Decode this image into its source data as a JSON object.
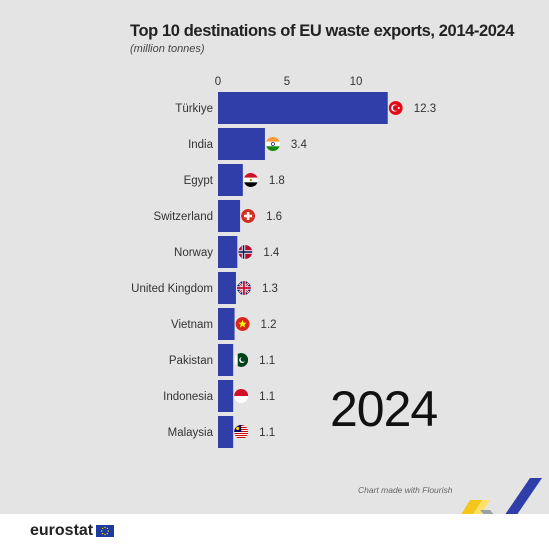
{
  "chart_data": {
    "type": "bar",
    "orientation": "horizontal",
    "title": "Top 10 destinations of EU waste exports, 2014-2024",
    "subtitle": "(million tonnes)",
    "categories": [
      "Türkiye",
      "India",
      "Egypt",
      "Switzerland",
      "Norway",
      "United Kingdom",
      "Vietnam",
      "Pakistan",
      "Indonesia",
      "Malaysia"
    ],
    "values": [
      12.3,
      3.4,
      1.8,
      1.6,
      1.4,
      1.3,
      1.2,
      1.1,
      1.1,
      1.1
    ],
    "value_labels": [
      "12.3",
      "3.4",
      "1.8",
      "1.6",
      "1.4",
      "1.3",
      "1.2",
      "1.1",
      "1.1",
      "1.1"
    ],
    "x_ticks": [
      0,
      5,
      10
    ],
    "xlim": [
      0,
      14
    ],
    "bar_color": "#2f3ea8",
    "flag_icons": [
      "turkey-flag-icon",
      "india-flag-icon",
      "egypt-flag-icon",
      "switzerland-flag-icon",
      "norway-flag-icon",
      "uk-flag-icon",
      "vietnam-flag-icon",
      "pakistan-flag-icon",
      "indonesia-flag-icon",
      "malaysia-flag-icon"
    ],
    "grid": false,
    "year": "2024"
  },
  "credit": "Chart made with Flourish",
  "footer": {
    "brand": "eurostat"
  },
  "colors": {
    "background": "#e4e4e4",
    "footer": "#ffffff",
    "bar": "#2f3ea8"
  }
}
